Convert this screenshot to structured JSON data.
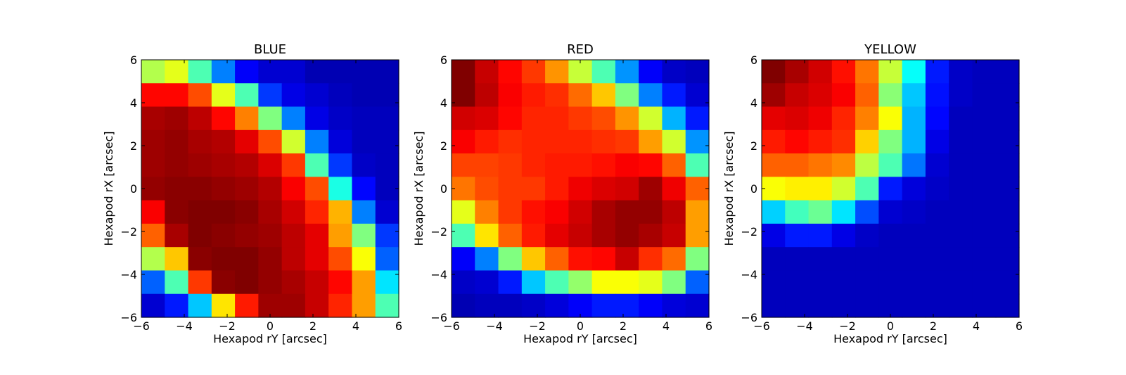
{
  "chart_data": [
    {
      "type": "heatmap",
      "title": "BLUE",
      "xlabel": "Hexapod rY [arcsec]",
      "ylabel": "Hexapod rX [arcsec]",
      "xlim": [
        -6,
        6
      ],
      "ylim": [
        -6,
        6
      ],
      "x_ticks": [
        -6,
        -4,
        -2,
        0,
        2,
        4,
        6
      ],
      "y_ticks": [
        -6,
        -4,
        -2,
        0,
        2,
        4,
        6
      ],
      "colormap": "jet",
      "grid": false,
      "rows_top_to_bottom": [
        [
          0.55,
          0.6,
          0.45,
          0.25,
          0.12,
          0.08,
          0.08,
          0.05,
          0.05,
          0.05,
          0.05
        ],
        [
          0.87,
          0.87,
          0.8,
          0.6,
          0.45,
          0.18,
          0.1,
          0.08,
          0.06,
          0.05,
          0.05
        ],
        [
          0.96,
          0.97,
          0.94,
          0.87,
          0.75,
          0.5,
          0.25,
          0.1,
          0.07,
          0.06,
          0.06
        ],
        [
          0.97,
          0.98,
          0.96,
          0.95,
          0.9,
          0.8,
          0.58,
          0.25,
          0.09,
          0.06,
          0.06
        ],
        [
          0.97,
          0.98,
          0.97,
          0.96,
          0.95,
          0.91,
          0.82,
          0.45,
          0.18,
          0.07,
          0.06
        ],
        [
          0.98,
          0.99,
          0.99,
          0.98,
          0.97,
          0.95,
          0.88,
          0.8,
          0.4,
          0.13,
          0.06
        ],
        [
          0.88,
          0.99,
          1.0,
          1.0,
          0.99,
          0.96,
          0.92,
          0.84,
          0.7,
          0.25,
          0.08
        ],
        [
          0.78,
          0.96,
          1.0,
          0.99,
          0.98,
          0.97,
          0.94,
          0.9,
          0.72,
          0.5,
          0.18
        ],
        [
          0.55,
          0.68,
          0.99,
          1.0,
          1.0,
          0.98,
          0.94,
          0.9,
          0.8,
          0.62,
          0.22
        ],
        [
          0.22,
          0.45,
          0.82,
          0.99,
          1.0,
          0.98,
          0.96,
          0.93,
          0.87,
          0.72,
          0.35
        ],
        [
          0.08,
          0.15,
          0.32,
          0.65,
          0.85,
          0.97,
          0.97,
          0.93,
          0.84,
          0.72,
          0.45
        ]
      ]
    },
    {
      "type": "heatmap",
      "title": "RED",
      "xlabel": "Hexapod rY [arcsec]",
      "ylabel": "Hexapod rX [arcsec]",
      "xlim": [
        -6,
        6
      ],
      "ylim": [
        -6,
        6
      ],
      "x_ticks": [
        -6,
        -4,
        -2,
        0,
        2,
        4,
        6
      ],
      "y_ticks": [
        -6,
        -4,
        -2,
        0,
        2,
        4,
        6
      ],
      "colormap": "jet",
      "grid": false,
      "rows_top_to_bottom": [
        [
          1.0,
          0.93,
          0.87,
          0.82,
          0.73,
          0.57,
          0.45,
          0.27,
          0.12,
          0.07,
          0.06
        ],
        [
          1.0,
          0.94,
          0.88,
          0.85,
          0.83,
          0.77,
          0.68,
          0.5,
          0.25,
          0.15,
          0.08
        ],
        [
          0.92,
          0.91,
          0.87,
          0.84,
          0.84,
          0.82,
          0.8,
          0.73,
          0.58,
          0.3,
          0.15
        ],
        [
          0.88,
          0.85,
          0.83,
          0.84,
          0.84,
          0.84,
          0.83,
          0.82,
          0.72,
          0.58,
          0.27
        ],
        [
          0.81,
          0.81,
          0.82,
          0.84,
          0.85,
          0.85,
          0.86,
          0.88,
          0.87,
          0.78,
          0.45
        ],
        [
          0.76,
          0.8,
          0.82,
          0.82,
          0.85,
          0.89,
          0.91,
          0.92,
          0.97,
          0.89,
          0.78
        ],
        [
          0.6,
          0.75,
          0.82,
          0.86,
          0.88,
          0.92,
          0.96,
          0.98,
          0.98,
          0.94,
          0.72
        ],
        [
          0.45,
          0.65,
          0.78,
          0.85,
          0.9,
          0.93,
          0.96,
          0.98,
          0.96,
          0.93,
          0.72
        ],
        [
          0.12,
          0.25,
          0.5,
          0.68,
          0.78,
          0.86,
          0.87,
          0.93,
          0.83,
          0.77,
          0.5
        ],
        [
          0.07,
          0.08,
          0.15,
          0.32,
          0.45,
          0.52,
          0.62,
          0.62,
          0.6,
          0.5,
          0.22
        ],
        [
          0.05,
          0.06,
          0.06,
          0.07,
          0.09,
          0.12,
          0.15,
          0.15,
          0.12,
          0.09,
          0.08
        ]
      ]
    },
    {
      "type": "heatmap",
      "title": "YELLOW",
      "xlabel": "Hexapod rY [arcsec]",
      "ylabel": "Hexapod rX [arcsec]",
      "xlim": [
        -6,
        6
      ],
      "ylim": [
        -6,
        6
      ],
      "x_ticks": [
        -6,
        -4,
        -2,
        0,
        2,
        4,
        6
      ],
      "y_ticks": [
        -6,
        -4,
        -2,
        0,
        2,
        4,
        6
      ],
      "colormap": "jet",
      "grid": false,
      "rows_top_to_bottom": [
        [
          1.0,
          0.96,
          0.92,
          0.86,
          0.76,
          0.57,
          0.38,
          0.15,
          0.07,
          0.06,
          0.06
        ],
        [
          0.97,
          0.93,
          0.91,
          0.88,
          0.78,
          0.51,
          0.32,
          0.14,
          0.07,
          0.06,
          0.06
        ],
        [
          0.9,
          0.91,
          0.89,
          0.84,
          0.75,
          0.62,
          0.3,
          0.13,
          0.06,
          0.06,
          0.06
        ],
        [
          0.85,
          0.87,
          0.85,
          0.83,
          0.67,
          0.5,
          0.3,
          0.1,
          0.06,
          0.06,
          0.06
        ],
        [
          0.78,
          0.78,
          0.76,
          0.74,
          0.56,
          0.45,
          0.24,
          0.08,
          0.06,
          0.06,
          0.06
        ],
        [
          0.62,
          0.64,
          0.64,
          0.58,
          0.45,
          0.15,
          0.09,
          0.07,
          0.06,
          0.06,
          0.06
        ],
        [
          0.33,
          0.44,
          0.48,
          0.35,
          0.2,
          0.08,
          0.07,
          0.06,
          0.06,
          0.06,
          0.06
        ],
        [
          0.1,
          0.15,
          0.15,
          0.1,
          0.07,
          0.06,
          0.06,
          0.06,
          0.06,
          0.06,
          0.06
        ],
        [
          0.06,
          0.06,
          0.06,
          0.06,
          0.06,
          0.06,
          0.06,
          0.06,
          0.06,
          0.06,
          0.06
        ],
        [
          0.06,
          0.06,
          0.06,
          0.06,
          0.06,
          0.06,
          0.06,
          0.06,
          0.06,
          0.06,
          0.06
        ],
        [
          0.06,
          0.06,
          0.06,
          0.06,
          0.06,
          0.06,
          0.06,
          0.06,
          0.06,
          0.06,
          0.06
        ]
      ]
    }
  ]
}
